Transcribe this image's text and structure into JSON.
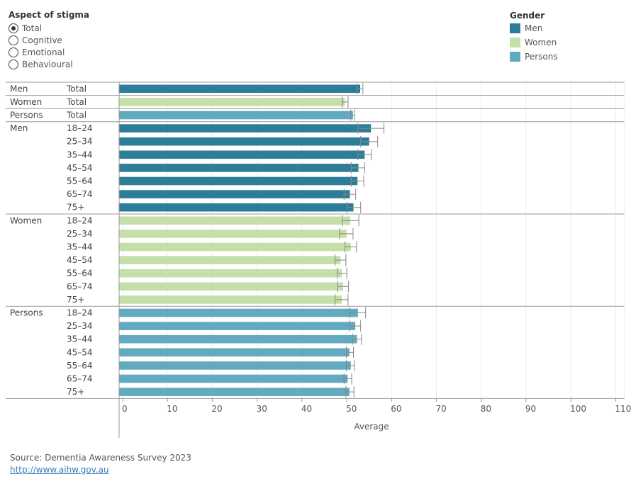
{
  "filter": {
    "title": "Aspect of stigma",
    "options": [
      "Total",
      "Cognitive",
      "Emotional",
      "Behavioural"
    ],
    "selected": "Total"
  },
  "legend": {
    "title": "Gender",
    "items": [
      {
        "label": "Men",
        "color": "#2e7d98"
      },
      {
        "label": "Women",
        "color": "#c4dfa8"
      },
      {
        "label": "Persons",
        "color": "#62aabf"
      }
    ]
  },
  "chart_data": {
    "type": "bar",
    "orientation": "horizontal",
    "xlabel": "Average",
    "xlim": [
      0,
      112
    ],
    "xticks": [
      0,
      10,
      20,
      30,
      40,
      50,
      60,
      70,
      80,
      90,
      100,
      110
    ],
    "gridlines": true,
    "error_bars": true,
    "rows": [
      {
        "gender": "Men",
        "age": "Total",
        "value": 53.0,
        "err": [
          52.3,
          53.6
        ]
      },
      {
        "gender": "Women",
        "age": "Total",
        "value": 49.6,
        "err": [
          49.0,
          50.3
        ]
      },
      {
        "gender": "Persons",
        "age": "Total",
        "value": 51.4,
        "err": [
          50.9,
          51.8
        ]
      },
      {
        "gender": "Men",
        "age": "18–24",
        "value": 55.4,
        "err": [
          52.5,
          58.3
        ]
      },
      {
        "gender": "Men",
        "age": "25–34",
        "value": 55.0,
        "err": [
          53.1,
          56.9
        ]
      },
      {
        "gender": "Men",
        "age": "35–44",
        "value": 54.0,
        "err": [
          52.5,
          55.5
        ]
      },
      {
        "gender": "Men",
        "age": "45–54",
        "value": 52.6,
        "err": [
          51.0,
          54.0
        ]
      },
      {
        "gender": "Men",
        "age": "55–64",
        "value": 52.4,
        "err": [
          51.0,
          53.8
        ]
      },
      {
        "gender": "Men",
        "age": "65–74",
        "value": 50.7,
        "err": [
          49.4,
          52.0
        ]
      },
      {
        "gender": "Men",
        "age": "75+",
        "value": 51.5,
        "err": [
          50.1,
          53.1
        ]
      },
      {
        "gender": "Women",
        "age": "18–24",
        "value": 50.8,
        "err": [
          49.0,
          52.7
        ]
      },
      {
        "gender": "Women",
        "age": "25–34",
        "value": 49.9,
        "err": [
          48.4,
          51.4
        ]
      },
      {
        "gender": "Women",
        "age": "35–44",
        "value": 50.9,
        "err": [
          49.6,
          52.2
        ]
      },
      {
        "gender": "Women",
        "age": "45–54",
        "value": 48.6,
        "err": [
          47.4,
          49.8
        ]
      },
      {
        "gender": "Women",
        "age": "55–64",
        "value": 48.9,
        "err": [
          47.9,
          50.0
        ]
      },
      {
        "gender": "Women",
        "age": "65–74",
        "value": 49.2,
        "err": [
          48.0,
          50.4
        ]
      },
      {
        "gender": "Women",
        "age": "75+",
        "value": 48.9,
        "err": [
          47.4,
          50.3
        ]
      },
      {
        "gender": "Persons",
        "age": "18–24",
        "value": 52.5,
        "err": [
          50.7,
          54.2
        ]
      },
      {
        "gender": "Persons",
        "age": "25–34",
        "value": 51.9,
        "err": [
          50.6,
          53.1
        ]
      },
      {
        "gender": "Persons",
        "age": "35–44",
        "value": 52.3,
        "err": [
          51.3,
          53.3
        ]
      },
      {
        "gender": "Persons",
        "age": "45–54",
        "value": 50.6,
        "err": [
          49.9,
          51.5
        ]
      },
      {
        "gender": "Persons",
        "age": "55–64",
        "value": 50.9,
        "err": [
          49.9,
          51.7
        ]
      },
      {
        "gender": "Persons",
        "age": "65–74",
        "value": 50.2,
        "err": [
          49.4,
          51.1
        ]
      },
      {
        "gender": "Persons",
        "age": "75+",
        "value": 50.6,
        "err": [
          49.8,
          51.6
        ]
      }
    ]
  },
  "footer": {
    "source": "Source: Dementia Awareness Survey 2023",
    "link": "http://www.aihw.gov.au"
  }
}
